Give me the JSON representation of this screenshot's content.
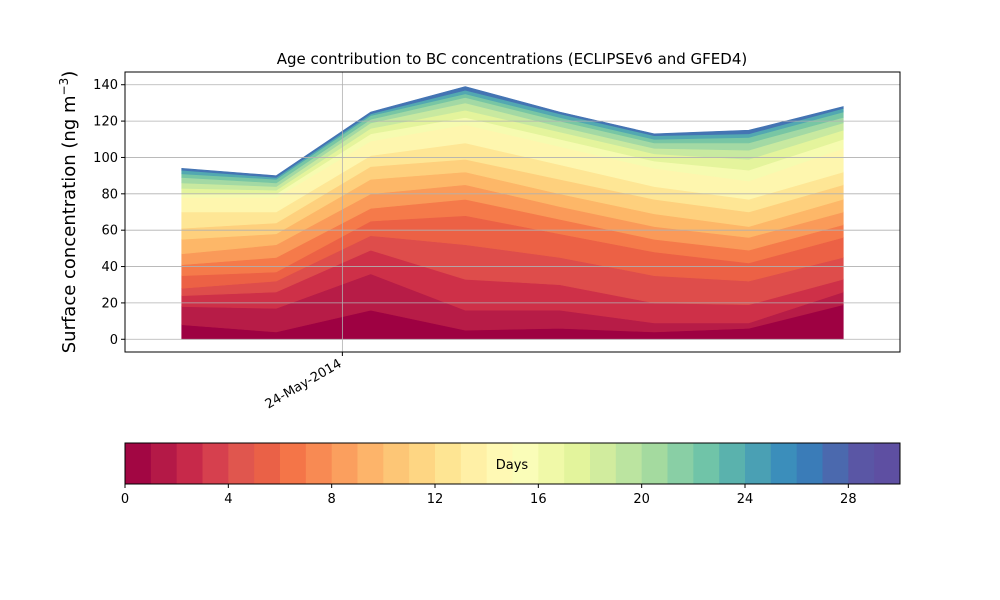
{
  "chart_data": {
    "type": "area",
    "stacked": true,
    "title": "Age contribution to BC concentrations (ECLIPSEv6 and GFED4)",
    "ylabel": "Surface concentration (ng m",
    "ylabel_exp": "−3",
    "ylabel_close": ")",
    "ylim": [
      -7,
      147
    ],
    "yticks": [
      0,
      20,
      40,
      60,
      80,
      100,
      120,
      140
    ],
    "grid": true,
    "x": [
      0,
      1,
      2,
      3,
      4,
      5,
      6,
      7
    ],
    "x_tick": {
      "value": 1.7,
      "label": "24-May-2014"
    },
    "xlim": [
      -0.6,
      7.6
    ],
    "totals": [
      94,
      90,
      125,
      139,
      125,
      113,
      115,
      128
    ],
    "layer_breaks": [
      [
        0,
        8,
        18,
        24,
        28,
        35,
        41,
        47,
        55,
        61,
        70,
        78,
        80,
        83,
        86,
        89,
        91,
        93,
        94
      ],
      [
        0,
        4,
        17,
        26,
        32,
        37,
        45,
        52,
        58,
        64,
        70,
        78,
        80,
        82,
        84,
        86,
        88,
        89,
        90
      ],
      [
        0,
        16,
        36,
        49,
        57,
        65,
        72,
        80,
        88,
        95,
        101,
        109,
        113,
        116,
        119,
        121,
        123,
        124,
        125
      ],
      [
        0,
        5,
        16,
        33,
        52,
        68,
        77,
        85,
        92,
        99,
        108,
        118,
        122,
        126,
        130,
        133,
        135,
        137,
        139
      ],
      [
        0,
        6,
        16,
        30,
        45,
        58,
        66,
        73,
        80,
        88,
        96,
        106,
        110,
        114,
        117,
        120,
        122,
        124,
        125
      ],
      [
        0,
        4,
        9,
        20,
        35,
        48,
        55,
        62,
        69,
        77,
        84,
        94,
        98,
        102,
        105,
        108,
        110,
        112,
        113
      ],
      [
        0,
        6,
        9,
        19,
        32,
        42,
        49,
        56,
        62,
        70,
        77,
        87,
        93,
        99,
        104,
        108,
        111,
        113,
        115
      ],
      [
        0,
        19,
        26,
        33,
        45,
        56,
        63,
        70,
        77,
        85,
        92,
        105,
        110,
        115,
        119,
        122,
        125,
        127,
        128
      ]
    ],
    "layer_colors": [
      "#9e0142",
      "#b71c47",
      "#ce3048",
      "#de4d4b",
      "#ec6145",
      "#f57a4a",
      "#fa9a59",
      "#fdb768",
      "#fed07d",
      "#fee695",
      "#fef6ae",
      "#f6fbb0",
      "#e4f49c",
      "#c8e9a0",
      "#a3d9a4",
      "#78c6a4",
      "#52a8b1",
      "#4474b3"
    ],
    "colorbar": {
      "label": "Days",
      "min": 0,
      "max": 30,
      "ticks": [
        0,
        4,
        8,
        12,
        16,
        20,
        24,
        28
      ],
      "colors": [
        "#a20643",
        "#b41947",
        "#c7294a",
        "#d6404e",
        "#e0564e",
        "#ea6147",
        "#f47548",
        "#f88a53",
        "#fb9f5e",
        "#fdb46a",
        "#fdc676",
        "#fed683",
        "#fee593",
        "#fff0a6",
        "#fff9b4",
        "#fafdb8",
        "#f0f9a8",
        "#e3f49c",
        "#d1ec9e",
        "#bbe4a0",
        "#a4da9f",
        "#89cfa5",
        "#70c4a8",
        "#5ab2ad",
        "#4aa0b4",
        "#3b8ebb",
        "#3a7cb8",
        "#4b69ae",
        "#5a56a5",
        "#5e4fa2"
      ]
    }
  }
}
